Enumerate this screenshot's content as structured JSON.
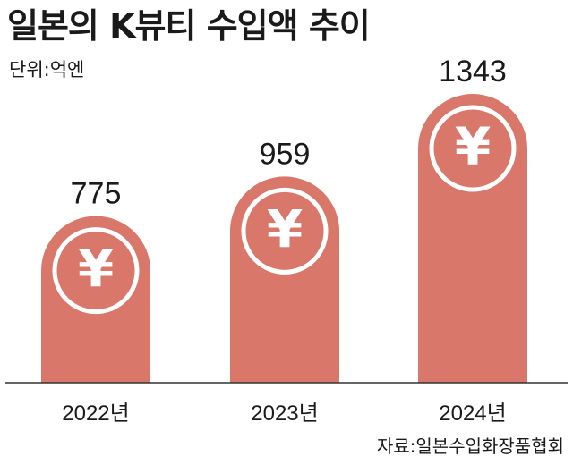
{
  "title": "일본의 K뷰티 수입액 추이",
  "unit": "단위:억엔",
  "source": "자료:일본수입화장품협회",
  "colors": {
    "bar": "#d9776a",
    "coin_ring": "#ffffff",
    "axis": "#333333"
  },
  "coin_symbol": "¥",
  "chart_data": {
    "type": "bar",
    "title": "일본의 K뷰티 수입액 추이",
    "categories": [
      "2022년",
      "2023년",
      "2024년"
    ],
    "values": [
      775,
      959,
      1343
    ],
    "ylabel": "단위:억엔",
    "ylim": [
      0,
      1343
    ],
    "grid": false,
    "legend": "none"
  }
}
